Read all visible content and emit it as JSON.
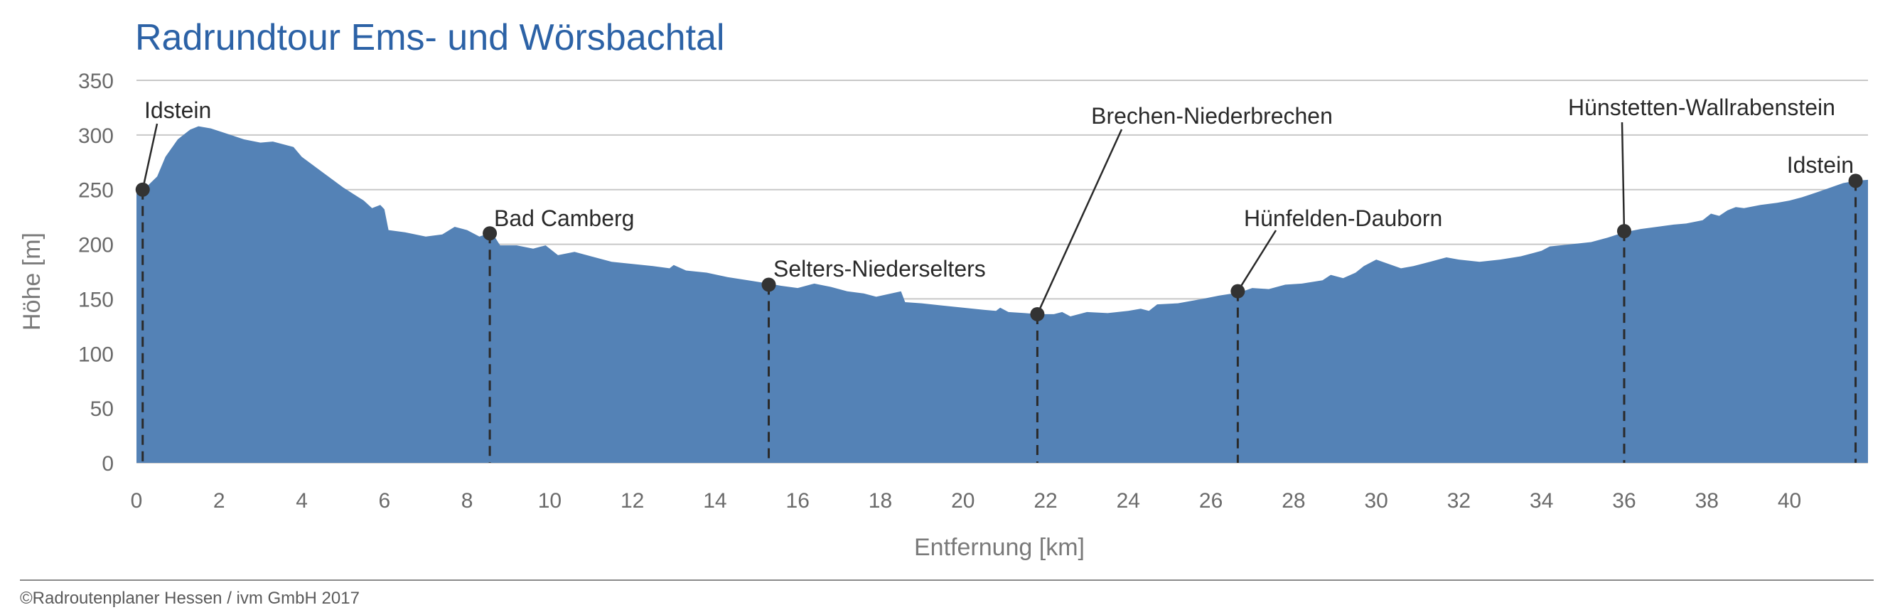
{
  "chart_data": {
    "type": "area",
    "title": "Radrundtour Ems- und Wörsbachtal",
    "xlabel": "Entfernung [km]",
    "ylabel": "Höhe [m]",
    "xlim": [
      0,
      41.9
    ],
    "ylim": [
      0,
      350
    ],
    "xticks": [
      0,
      2,
      4,
      6,
      8,
      10,
      12,
      14,
      16,
      18,
      20,
      22,
      24,
      26,
      28,
      30,
      32,
      34,
      36,
      38,
      40
    ],
    "yticks": [
      0,
      50,
      100,
      150,
      200,
      250,
      300,
      350
    ],
    "grid": true,
    "colors": {
      "fill": "#5482b6",
      "title": "#2c62a6"
    },
    "profile": [
      [
        0,
        250
      ],
      [
        0.2,
        251
      ],
      [
        0.5,
        262
      ],
      [
        0.7,
        280
      ],
      [
        1.0,
        296
      ],
      [
        1.3,
        305
      ],
      [
        1.5,
        308
      ],
      [
        1.8,
        306
      ],
      [
        2.2,
        301
      ],
      [
        2.6,
        296
      ],
      [
        3.0,
        293
      ],
      [
        3.3,
        294
      ],
      [
        3.8,
        289
      ],
      [
        4.0,
        280
      ],
      [
        4.5,
        266
      ],
      [
        5.0,
        252
      ],
      [
        5.5,
        240
      ],
      [
        5.7,
        233
      ],
      [
        5.9,
        236
      ],
      [
        6.0,
        232
      ],
      [
        6.1,
        213
      ],
      [
        6.5,
        211
      ],
      [
        7.0,
        207
      ],
      [
        7.4,
        209
      ],
      [
        7.7,
        216
      ],
      [
        8.0,
        213
      ],
      [
        8.3,
        207
      ],
      [
        8.6,
        211
      ],
      [
        8.8,
        199
      ],
      [
        9.2,
        199
      ],
      [
        9.6,
        196
      ],
      [
        9.9,
        199
      ],
      [
        10.2,
        190
      ],
      [
        10.6,
        193
      ],
      [
        11.0,
        189
      ],
      [
        11.5,
        184
      ],
      [
        12.0,
        182
      ],
      [
        12.5,
        180
      ],
      [
        12.9,
        178
      ],
      [
        13.0,
        181
      ],
      [
        13.3,
        176
      ],
      [
        13.8,
        174
      ],
      [
        14.3,
        170
      ],
      [
        14.8,
        167
      ],
      [
        15.3,
        164
      ],
      [
        15.6,
        162
      ],
      [
        16.0,
        160
      ],
      [
        16.4,
        164
      ],
      [
        16.8,
        161
      ],
      [
        17.2,
        157
      ],
      [
        17.6,
        155
      ],
      [
        17.9,
        152
      ],
      [
        18.5,
        157
      ],
      [
        18.6,
        147
      ],
      [
        19.0,
        146
      ],
      [
        19.5,
        144
      ],
      [
        20.0,
        142
      ],
      [
        20.5,
        140
      ],
      [
        20.8,
        139
      ],
      [
        20.9,
        142
      ],
      [
        21.1,
        138
      ],
      [
        21.5,
        137
      ],
      [
        21.8,
        136
      ],
      [
        22.2,
        136
      ],
      [
        22.4,
        138
      ],
      [
        22.6,
        134
      ],
      [
        23.0,
        138
      ],
      [
        23.5,
        137
      ],
      [
        24.0,
        139
      ],
      [
        24.3,
        141
      ],
      [
        24.5,
        139
      ],
      [
        24.7,
        145
      ],
      [
        25.2,
        146
      ],
      [
        25.5,
        148
      ],
      [
        25.8,
        150
      ],
      [
        26.2,
        153
      ],
      [
        26.7,
        156
      ],
      [
        27.0,
        160
      ],
      [
        27.4,
        159
      ],
      [
        27.8,
        163
      ],
      [
        28.2,
        164
      ],
      [
        28.7,
        167
      ],
      [
        28.9,
        172
      ],
      [
        29.2,
        169
      ],
      [
        29.5,
        174
      ],
      [
        29.7,
        180
      ],
      [
        30.0,
        186
      ],
      [
        30.3,
        182
      ],
      [
        30.6,
        178
      ],
      [
        30.9,
        180
      ],
      [
        31.3,
        184
      ],
      [
        31.7,
        188
      ],
      [
        32.0,
        186
      ],
      [
        32.5,
        184
      ],
      [
        33.0,
        186
      ],
      [
        33.5,
        189
      ],
      [
        34.0,
        194
      ],
      [
        34.2,
        198
      ],
      [
        34.7,
        200
      ],
      [
        35.2,
        202
      ],
      [
        35.6,
        206
      ],
      [
        36.0,
        211
      ],
      [
        36.4,
        214
      ],
      [
        36.8,
        216
      ],
      [
        37.2,
        218
      ],
      [
        37.5,
        219
      ],
      [
        37.9,
        222
      ],
      [
        38.1,
        228
      ],
      [
        38.3,
        226
      ],
      [
        38.5,
        231
      ],
      [
        38.7,
        234
      ],
      [
        38.9,
        233
      ],
      [
        39.3,
        236
      ],
      [
        39.7,
        238
      ],
      [
        40.0,
        240
      ],
      [
        40.3,
        243
      ],
      [
        40.7,
        248
      ],
      [
        41.0,
        252
      ],
      [
        41.3,
        256
      ],
      [
        41.6,
        258
      ],
      [
        41.9,
        259
      ]
    ],
    "points": [
      {
        "name": "Idstein",
        "x": 0.15,
        "y": 250
      },
      {
        "name": "Bad Camberg",
        "x": 8.55,
        "y": 210
      },
      {
        "name": "Selters-Niederselters",
        "x": 15.3,
        "y": 163
      },
      {
        "name": "Brechen-Niederbrechen",
        "x": 21.8,
        "y": 136
      },
      {
        "name": "Hünfelden-Dauborn",
        "x": 26.65,
        "y": 157
      },
      {
        "name": "Hünstetten-Wallrabenstein",
        "x": 36.0,
        "y": 212
      },
      {
        "name": "Idstein",
        "x": 41.6,
        "y": 258
      }
    ]
  },
  "footer": {
    "credit": "©Radroutenplaner Hessen / ivm GmbH 2017"
  }
}
